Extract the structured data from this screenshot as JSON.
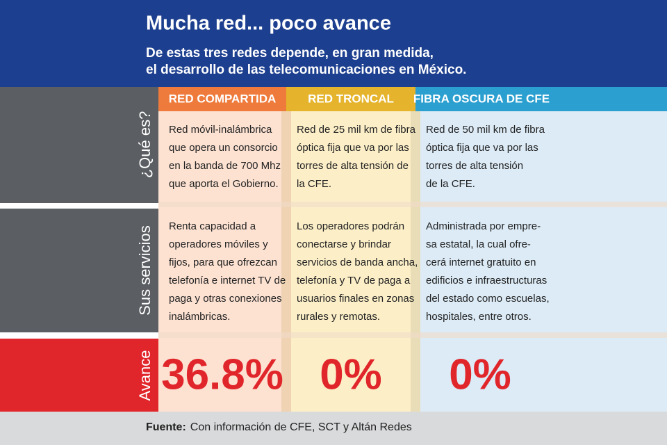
{
  "header": {
    "title": "Mucha red...  poco avance",
    "subtitle": [
      "De estas tres redes depende, en gran medida,",
      "el desarrollo de las telecomunicaciones en México."
    ]
  },
  "table": {
    "columns": [
      "RED COMPARTIDA",
      "RED TRONCAL",
      "FIBRA OSCURA DE CFE"
    ],
    "rows": [
      {
        "label": "¿Qué es?",
        "cells": [
          [
            "Red móvil-inalámbrica",
            "que opera un consorcio",
            "en la banda de 700 Mhz",
            "que aporta el Gobierno."
          ],
          [
            "Red de 25 mil km de fibra",
            "óptica fija que va por las",
            "torres de alta tensión de",
            "la CFE."
          ],
          [
            "Red de 50 mil km de fibra",
            "óptica fija que va por las",
            "torres de alta tensión",
            "de la CFE."
          ]
        ]
      },
      {
        "label": "Sus servicios",
        "cells": [
          [
            "Renta capacidad a",
            "operadores móviles y",
            "fijos, para que ofrezcan",
            "telefonía e internet TV de",
            "paga y otras conexiones",
            "inalámbricas."
          ],
          [
            "Los operadores podrán",
            "conectarse y brindar",
            "servicios de banda ancha,",
            "telefonía y TV de paga a",
            "usuarios finales en zonas",
            "rurales y remotas."
          ],
          [
            "Administrada por empre-",
            "sa estatal, la cual ofre-",
            "cerá internet gratuito en",
            "edificios e infraestructuras",
            "del estado como escuelas,",
            "hospitales, entre otros."
          ]
        ]
      },
      {
        "label": "Avance",
        "cells": [
          "36.8%",
          "0%",
          "0%"
        ]
      }
    ]
  },
  "footer": {
    "label": "Fuente:",
    "text": "Con información de CFE, SCT y Altán Redes"
  }
}
